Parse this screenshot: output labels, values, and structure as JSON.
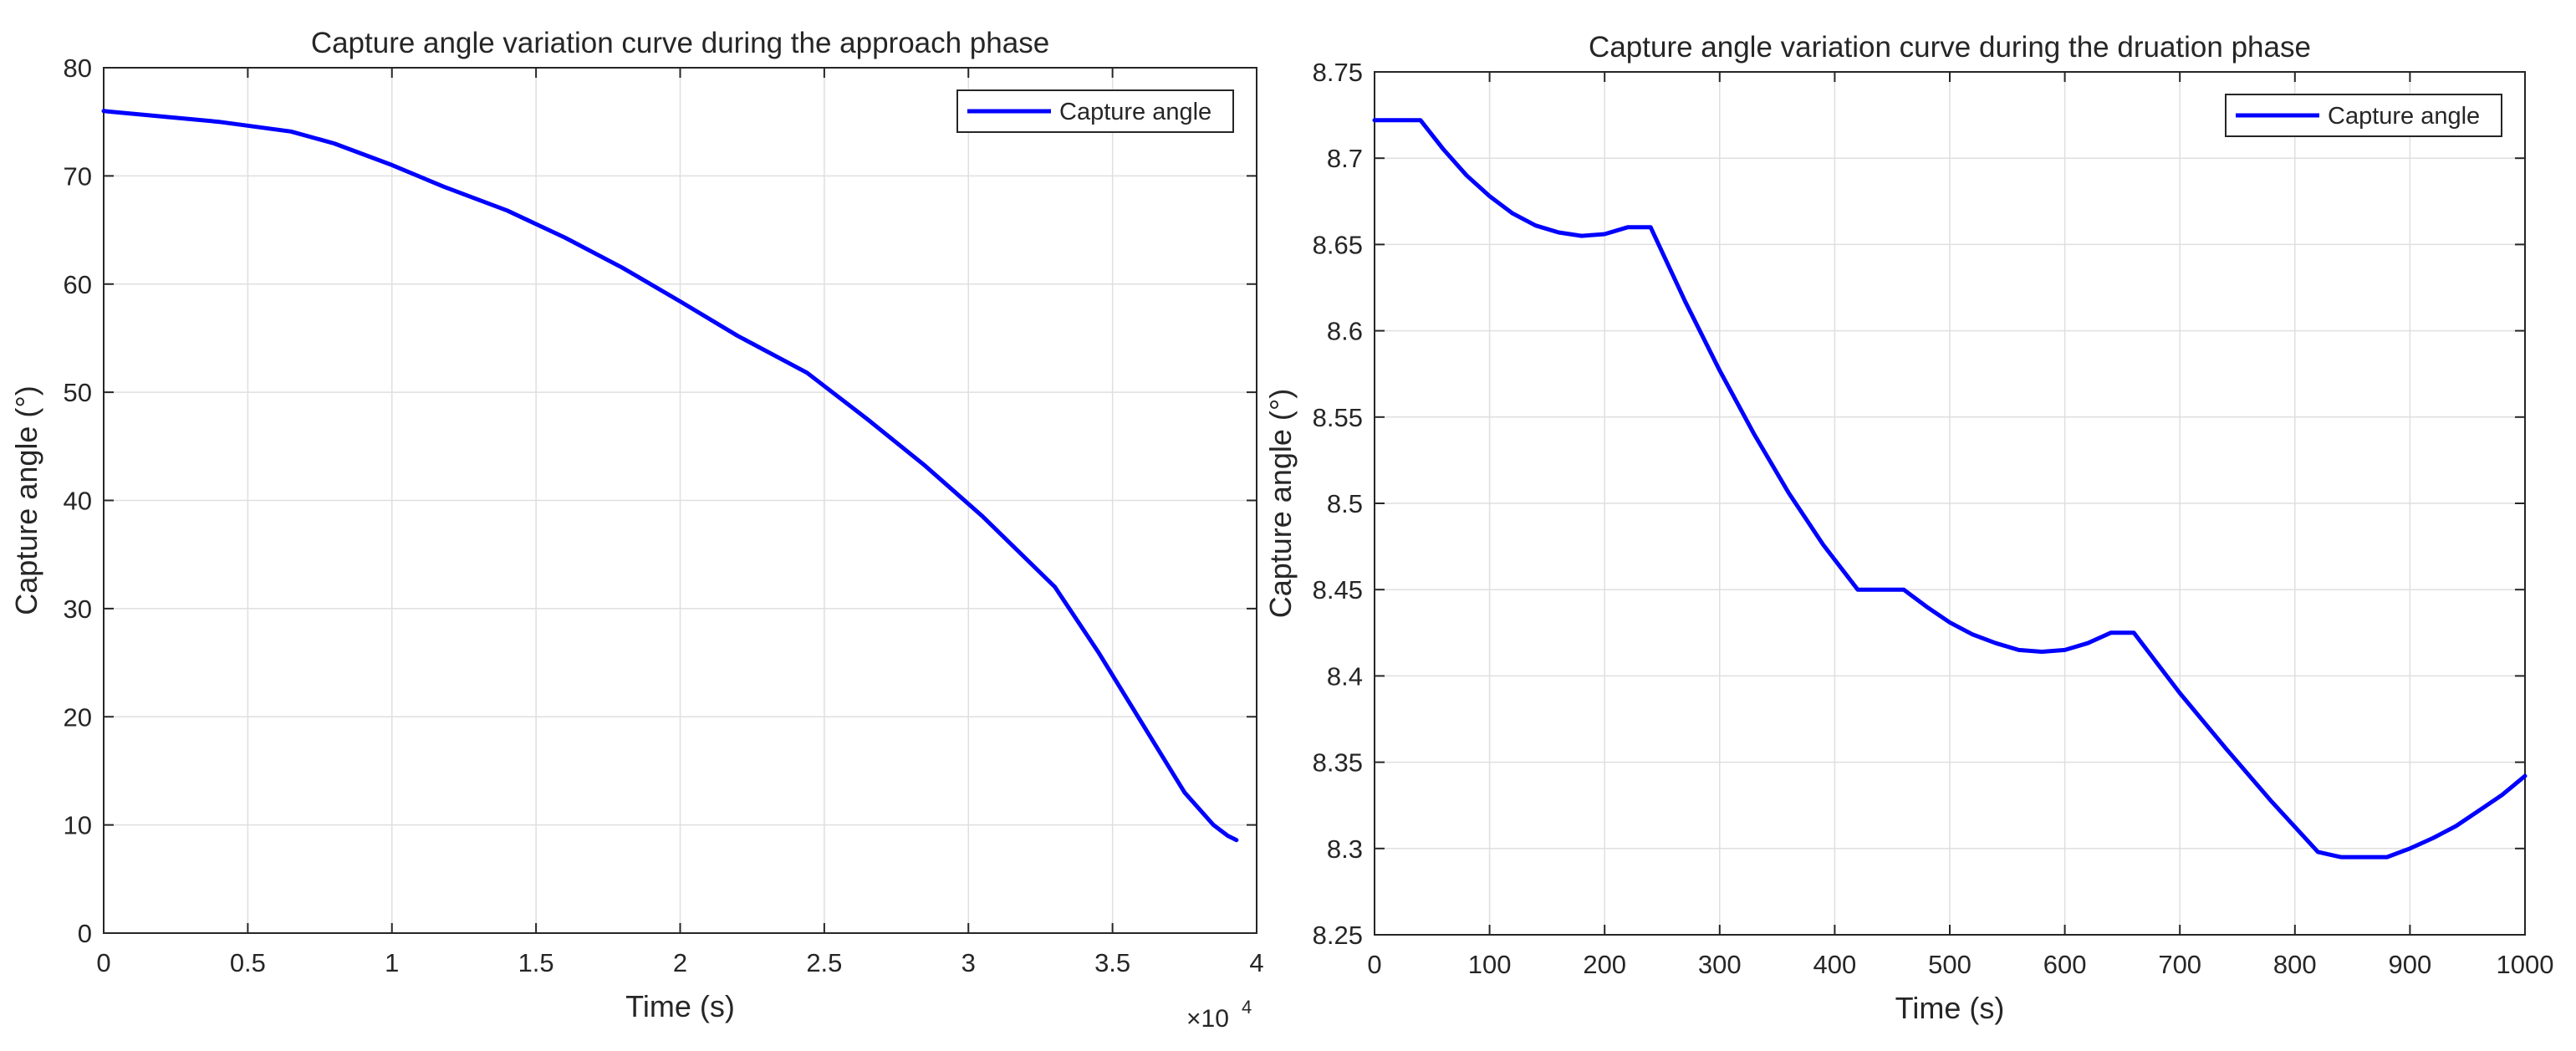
{
  "colors": {
    "line": "#0000ff",
    "axis": "#262626",
    "grid": "#dfdfdf",
    "background": "#ffffff"
  },
  "chart_data": [
    {
      "type": "line",
      "title": "Capture angle variation curve during the approach phase",
      "xlabel": "Time (s)",
      "ylabel": "Capture angle (°)",
      "xlim": [
        0,
        40000
      ],
      "ylim": [
        0,
        80
      ],
      "x_tick_labels": [
        "0",
        "0.5",
        "1",
        "1.5",
        "2",
        "2.5",
        "3",
        "3.5",
        "4"
      ],
      "y_tick_labels": [
        "0",
        "10",
        "20",
        "30",
        "40",
        "50",
        "60",
        "70",
        "80"
      ],
      "x_exponent": {
        "base": "×10",
        "power": "4"
      },
      "grid": true,
      "legend": {
        "position": "top-right",
        "entries": [
          "Capture angle"
        ]
      },
      "series": [
        {
          "name": "Capture angle",
          "x": [
            0,
            2000,
            4000,
            6500,
            8000,
            10000,
            11800,
            14000,
            16000,
            18000,
            20000,
            22000,
            24400,
            26500,
            28500,
            30500,
            33000,
            34500,
            36000,
            37500,
            38500,
            39000,
            39300
          ],
          "y": [
            76.0,
            75.5,
            75.0,
            74.1,
            73.0,
            71.0,
            69.0,
            66.8,
            64.3,
            61.5,
            58.4,
            55.2,
            51.8,
            47.5,
            43.2,
            38.5,
            32.0,
            26.0,
            19.5,
            13.0,
            10.0,
            9.0,
            8.6
          ]
        }
      ]
    },
    {
      "type": "line",
      "title": "Capture angle variation curve during the druation phase",
      "xlabel": "Time (s)",
      "ylabel": "Capture angle (°)",
      "xlim": [
        0,
        1000
      ],
      "ylim": [
        8.25,
        8.75
      ],
      "x_tick_labels": [
        "0",
        "100",
        "200",
        "300",
        "400",
        "500",
        "600",
        "700",
        "800",
        "900",
        "1000"
      ],
      "y_tick_labels": [
        "8.25",
        "8.3",
        "8.35",
        "8.4",
        "8.45",
        "8.5",
        "8.55",
        "8.6",
        "8.65",
        "8.7",
        "8.75"
      ],
      "grid": true,
      "legend": {
        "position": "top-right",
        "entries": [
          "Capture angle"
        ]
      },
      "series": [
        {
          "name": "Capture angle",
          "x": [
            0,
            40,
            60,
            80,
            100,
            120,
            140,
            160,
            180,
            200,
            220,
            240,
            270,
            300,
            330,
            360,
            390,
            420,
            460,
            480,
            500,
            520,
            540,
            560,
            580,
            600,
            620,
            640,
            660,
            700,
            740,
            780,
            820,
            840,
            880,
            900,
            920,
            940,
            960,
            980,
            1000
          ],
          "y": [
            8.722,
            8.722,
            8.705,
            8.69,
            8.678,
            8.668,
            8.661,
            8.657,
            8.655,
            8.656,
            8.66,
            8.66,
            8.617,
            8.577,
            8.54,
            8.506,
            8.476,
            8.45,
            8.45,
            8.44,
            8.431,
            8.424,
            8.419,
            8.415,
            8.414,
            8.415,
            8.419,
            8.425,
            8.425,
            8.39,
            8.358,
            8.327,
            8.298,
            8.295,
            8.295,
            8.3,
            8.306,
            8.313,
            8.322,
            8.331,
            8.342
          ]
        }
      ]
    }
  ]
}
